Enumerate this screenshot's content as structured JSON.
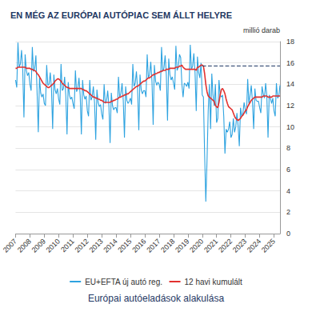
{
  "chart_data": {
    "type": "line",
    "title": "EN MÉG AZ EURÓPAI AUTÓPIAC SEM ÁLLT HELYRE",
    "subtitle": "Európai autóeladások alakulása",
    "y_label": "millió darab",
    "categories": [
      "2007",
      null,
      null,
      null,
      null,
      null,
      null,
      null,
      null,
      null,
      null,
      null,
      "2008",
      null,
      null,
      null,
      null,
      null,
      null,
      null,
      null,
      null,
      null,
      null,
      "2009",
      null,
      null,
      null,
      null,
      null,
      null,
      null,
      null,
      null,
      null,
      null,
      "2010",
      null,
      null,
      null,
      null,
      null,
      null,
      null,
      null,
      null,
      null,
      null,
      "2011",
      null,
      null,
      null,
      null,
      null,
      null,
      null,
      null,
      null,
      null,
      null,
      "2012",
      null,
      null,
      null,
      null,
      null,
      null,
      null,
      null,
      null,
      null,
      null,
      "2013",
      null,
      null,
      null,
      null,
      null,
      null,
      null,
      null,
      null,
      null,
      null,
      "2014",
      null,
      null,
      null,
      null,
      null,
      null,
      null,
      null,
      null,
      null,
      null,
      "2015",
      null,
      null,
      null,
      null,
      null,
      null,
      null,
      null,
      null,
      null,
      null,
      "2016",
      null,
      null,
      null,
      null,
      null,
      null,
      null,
      null,
      null,
      null,
      null,
      "2017",
      null,
      null,
      null,
      null,
      null,
      null,
      null,
      null,
      null,
      null,
      null,
      "2018",
      null,
      null,
      null,
      null,
      null,
      null,
      null,
      null,
      null,
      null,
      null,
      "2019",
      null,
      null,
      null,
      null,
      null,
      null,
      null,
      null,
      null,
      null,
      null,
      "2020",
      null,
      null,
      null,
      null,
      null,
      null,
      null,
      null,
      null,
      null,
      null,
      "2021",
      null,
      null,
      null,
      null,
      null,
      null,
      null,
      null,
      null,
      null,
      null,
      "2022",
      null,
      null,
      null,
      null,
      null,
      null,
      null,
      null,
      null,
      null,
      null,
      "2023",
      null,
      null,
      null,
      null,
      null,
      null,
      null,
      null,
      null,
      null,
      null,
      "2024",
      null,
      null,
      null,
      null,
      null,
      null,
      null,
      null,
      null,
      null,
      null,
      "2025",
      null,
      null,
      null,
      null,
      null
    ],
    "series": [
      {
        "name": "EU+EFTA új autó reg.",
        "color": "#2ea3e0",
        "values": [
          14.4,
          13.7,
          17.9,
          15.6,
          15.9,
          17.2,
          15.3,
          10.9,
          16.8,
          15.3,
          14.8,
          15.1,
          14.0,
          13.4,
          17.5,
          15.2,
          15.5,
          16.7,
          13.2,
          9.5,
          14.6,
          13.2,
          12.8,
          13.1,
          12.2,
          12.0,
          15.8,
          13.9,
          14.0,
          15.1,
          13.6,
          9.8,
          14.9,
          13.5,
          13.1,
          13.6,
          12.6,
          12.1,
          15.9,
          13.4,
          13.6,
          14.7,
          12.9,
          9.3,
          14.2,
          13.0,
          12.6,
          12.8,
          12.2,
          11.7,
          15.3,
          13.3,
          13.6,
          14.6,
          13.0,
          9.3,
          14.4,
          13.0,
          12.6,
          12.9,
          11.5,
          11.0,
          14.4,
          12.5,
          12.8,
          13.8,
          12.3,
          8.8,
          13.5,
          12.3,
          11.9,
          12.1,
          11.2,
          10.7,
          14.0,
          12.2,
          12.4,
          13.4,
          12.0,
          8.5,
          13.2,
          12.0,
          11.6,
          11.8,
          11.8,
          11.3,
          14.7,
          12.8,
          13.1,
          14.1,
          12.5,
          9.0,
          13.8,
          12.5,
          12.2,
          12.4,
          12.7,
          12.1,
          15.9,
          13.8,
          14.1,
          15.2,
          13.5,
          9.7,
          14.9,
          13.5,
          13.1,
          13.4,
          13.4,
          12.8,
          16.8,
          14.6,
          14.9,
          16.1,
          14.3,
          10.2,
          15.8,
          14.3,
          13.9,
          14.2,
          14.0,
          13.4,
          17.5,
          15.2,
          15.5,
          16.7,
          14.9,
          10.6,
          16.4,
          14.9,
          14.4,
          14.7,
          14.1,
          13.5,
          17.6,
          15.3,
          15.6,
          16.8,
          16.5,
          14.0,
          12.8,
          14.1,
          14.0,
          13.8,
          14.2,
          13.6,
          17.7,
          15.4,
          15.7,
          16.9,
          15.1,
          11.5,
          16.6,
          15.1,
          14.6,
          16.0,
          13.0,
          12.8,
          7.5,
          3.0,
          6.8,
          11.5,
          14.0,
          9.8,
          15.0,
          13.0,
          12.0,
          14.0,
          10.4,
          10.8,
          14.4,
          13.0,
          12.8,
          13.0,
          11.0,
          7.5,
          9.8,
          9.5,
          9.8,
          10.5,
          9.0,
          9.3,
          10.8,
          9.5,
          10.0,
          11.3,
          10.1,
          8.2,
          11.8,
          11.0,
          11.3,
          12.3,
          11.6,
          11.2,
          14.5,
          12.2,
          13.0,
          13.9,
          12.3,
          9.8,
          13.6,
          12.5,
          12.4,
          12.4,
          11.8,
          11.3,
          13.8,
          13.1,
          12.7,
          14.1,
          12.9,
          9.0,
          13.0,
          12.7,
          12.2,
          12.7,
          11.5,
          11.0,
          14.1,
          12.7,
          12.9,
          13.9
        ]
      },
      {
        "name": "12 havi kumulált",
        "color": "#e2312f",
        "values": [
          15.5,
          15.5,
          15.6,
          15.6,
          15.6,
          15.6,
          15.6,
          15.6,
          15.6,
          15.5,
          15.5,
          15.5,
          15.5,
          15.4,
          15.4,
          15.3,
          15.3,
          15.2,
          15.0,
          14.9,
          14.7,
          14.5,
          14.3,
          14.1,
          14.0,
          13.9,
          13.8,
          13.7,
          13.7,
          13.8,
          13.9,
          14.0,
          14.1,
          14.3,
          14.4,
          14.5,
          14.5,
          14.4,
          14.3,
          14.1,
          14.0,
          13.9,
          13.8,
          13.7,
          13.7,
          13.6,
          13.6,
          13.6,
          13.6,
          13.6,
          13.6,
          13.6,
          13.6,
          13.6,
          13.6,
          13.6,
          13.5,
          13.5,
          13.4,
          13.4,
          13.3,
          13.2,
          13.1,
          13.0,
          12.9,
          12.8,
          12.8,
          12.7,
          12.7,
          12.6,
          12.6,
          12.5,
          12.5,
          12.4,
          12.3,
          12.3,
          12.3,
          12.3,
          12.3,
          12.3,
          12.4,
          12.4,
          12.5,
          12.5,
          12.6,
          12.6,
          12.7,
          12.8,
          12.8,
          12.9,
          12.9,
          13.0,
          13.0,
          13.1,
          13.1,
          13.2,
          13.3,
          13.4,
          13.5,
          13.6,
          13.7,
          13.8,
          13.8,
          13.9,
          14.0,
          14.1,
          14.2,
          14.3,
          14.3,
          14.4,
          14.5,
          14.6,
          14.6,
          14.7,
          14.8,
          14.9,
          14.9,
          15.0,
          15.0,
          15.1,
          15.1,
          15.2,
          15.2,
          15.3,
          15.3,
          15.3,
          15.4,
          15.4,
          15.4,
          15.5,
          15.5,
          15.5,
          15.5,
          15.5,
          15.6,
          15.6,
          15.6,
          15.7,
          15.7,
          15.8,
          15.6,
          15.5,
          15.4,
          15.4,
          15.4,
          15.4,
          15.4,
          15.4,
          15.4,
          15.4,
          15.4,
          15.3,
          15.6,
          15.6,
          15.7,
          15.8,
          15.8,
          15.7,
          15.0,
          14.0,
          13.3,
          12.9,
          12.8,
          12.7,
          12.6,
          12.5,
          12.4,
          12.0,
          11.9,
          11.8,
          12.3,
          13.0,
          13.5,
          13.6,
          13.4,
          13.1,
          12.6,
          12.2,
          11.9,
          11.8,
          11.7,
          11.6,
          11.3,
          11.0,
          10.8,
          10.7,
          10.6,
          10.7,
          10.8,
          11.0,
          11.1,
          11.3,
          11.5,
          11.6,
          11.9,
          12.1,
          12.3,
          12.5,
          12.6,
          12.7,
          12.8,
          12.8,
          12.8,
          12.8,
          12.8,
          12.8,
          12.8,
          12.9,
          12.9,
          12.9,
          12.9,
          12.8,
          12.8,
          12.8,
          12.8,
          12.9,
          12.9,
          12.9,
          12.9,
          12.9,
          12.9,
          12.9
        ]
      }
    ],
    "reference_line": {
      "value": 15.7,
      "start": "2020",
      "line_style": "dashed",
      "color": "#1f3864"
    },
    "ylim": [
      0,
      18
    ],
    "yticks": [
      0,
      2,
      4,
      6,
      8,
      10,
      12,
      14,
      16,
      18
    ],
    "grid": true,
    "legend": "bottom"
  }
}
